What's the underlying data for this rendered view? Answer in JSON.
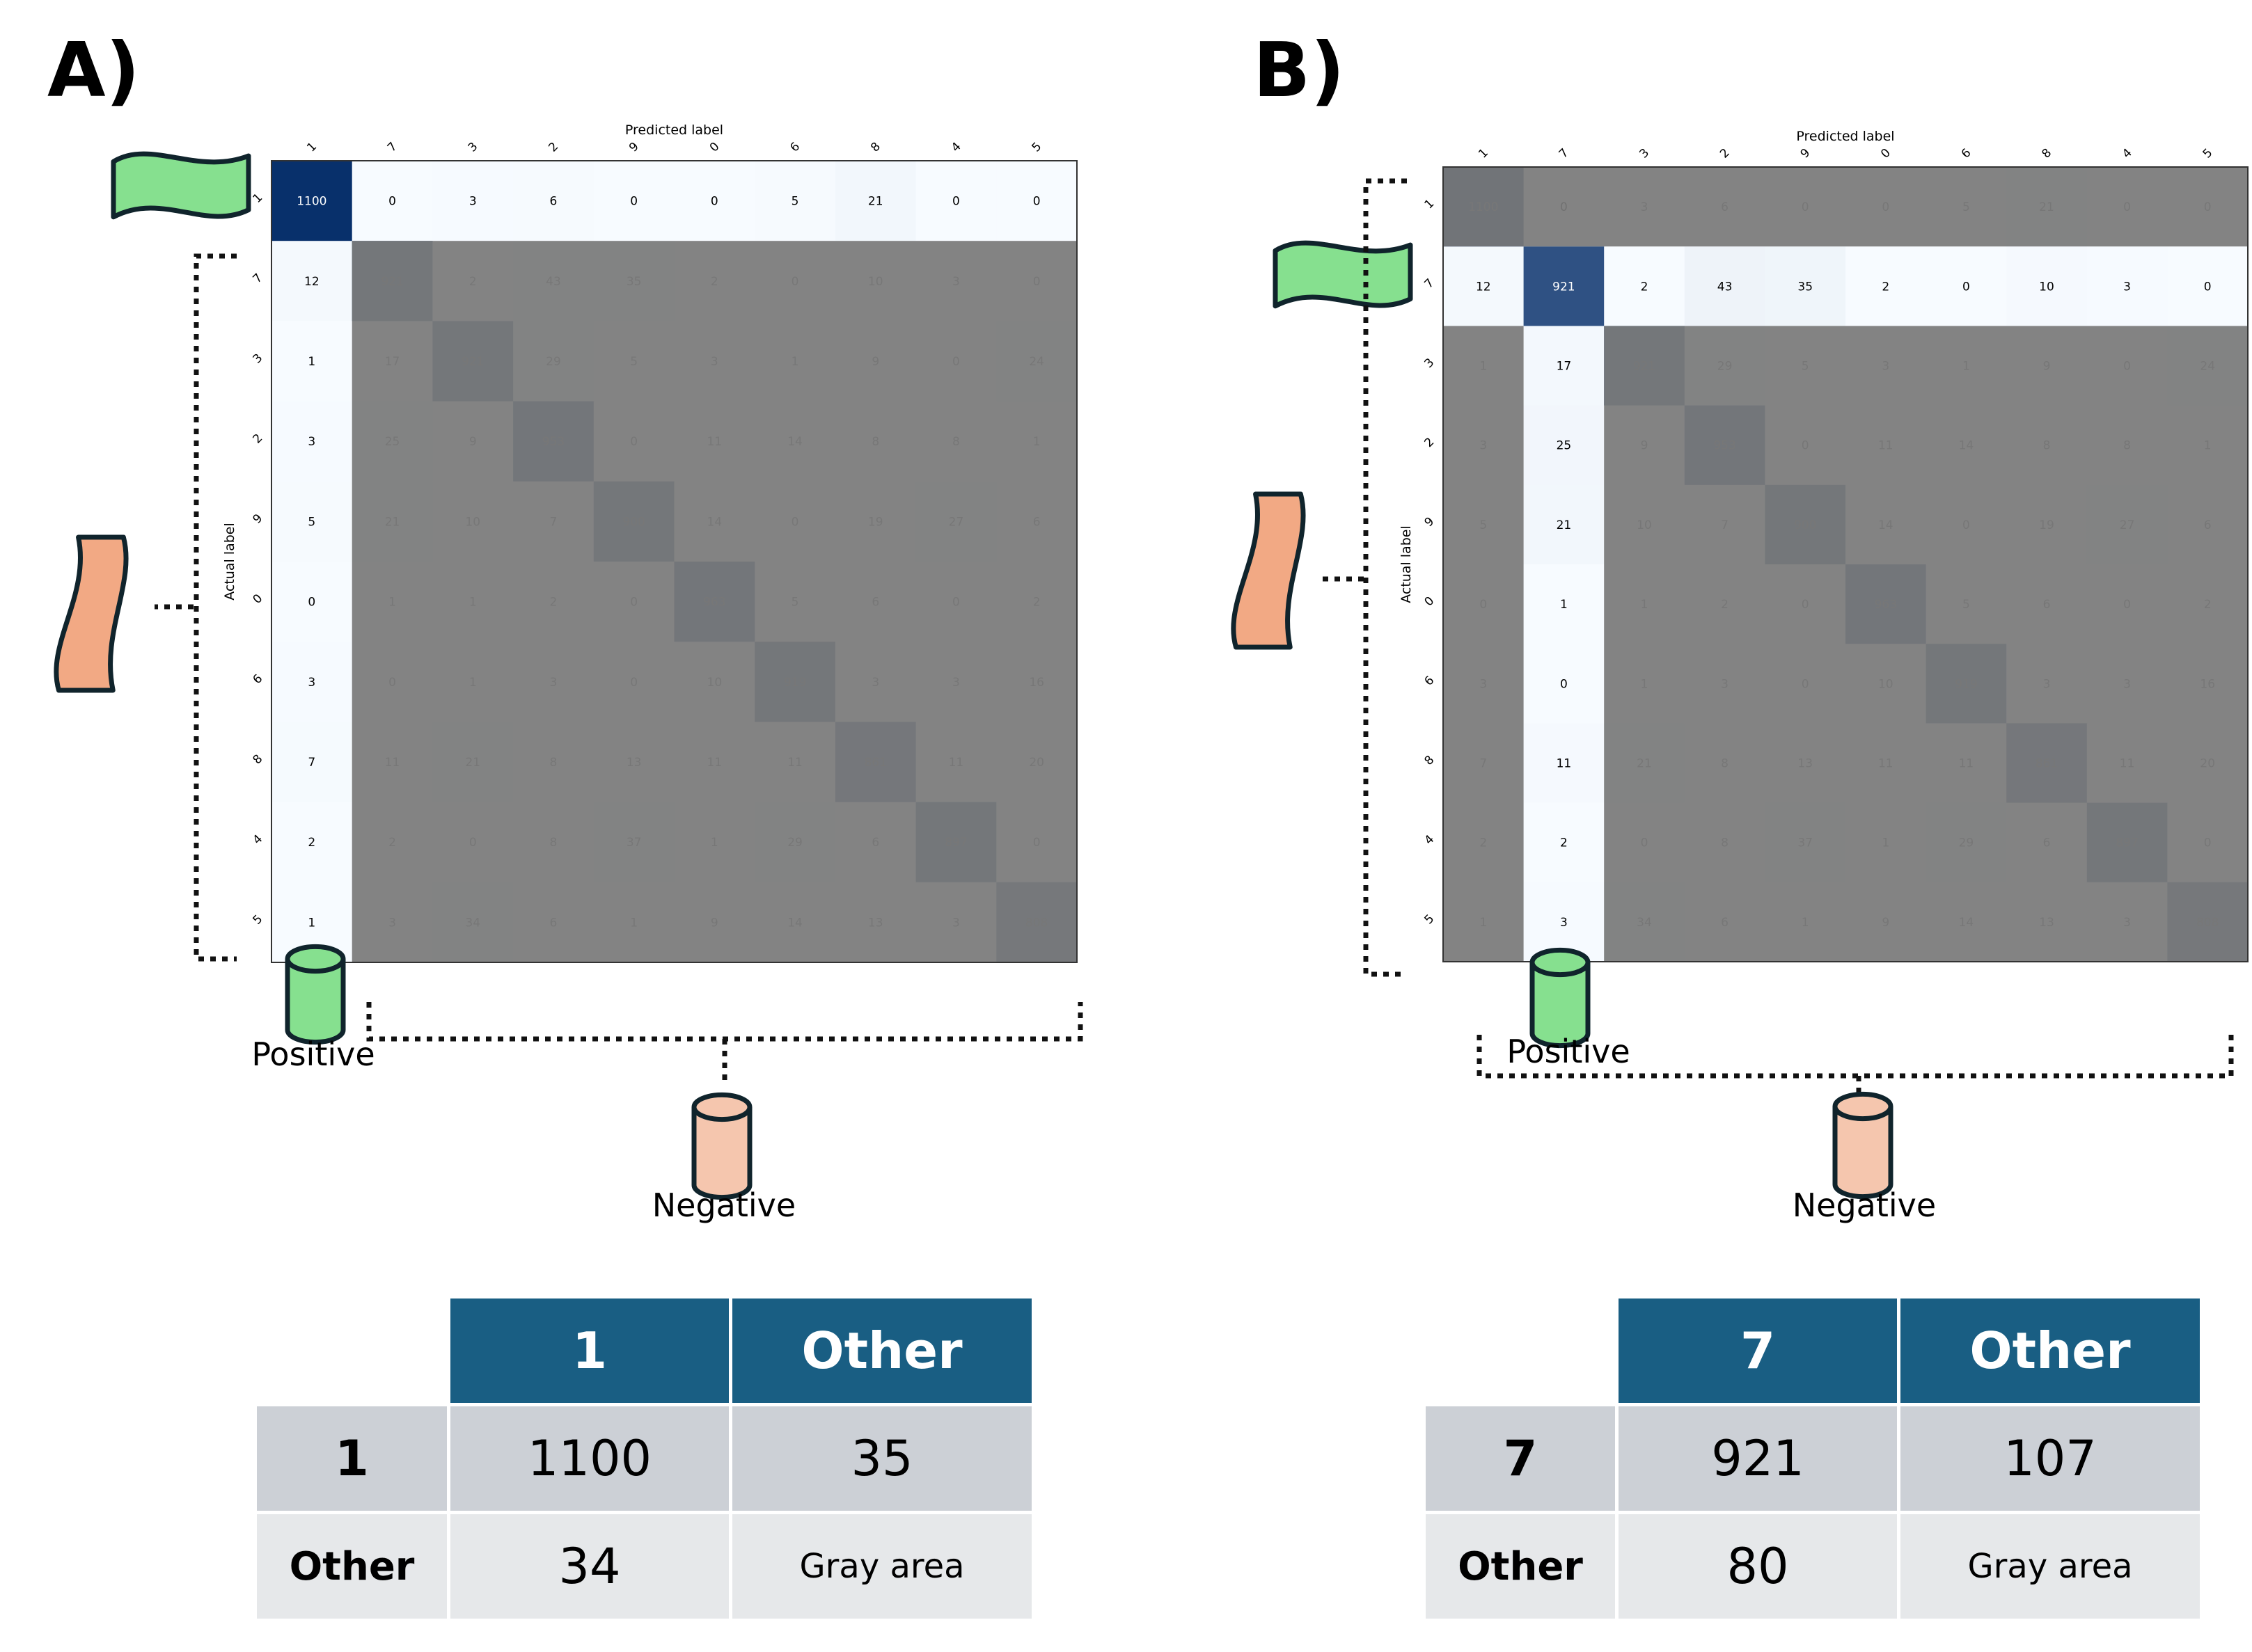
{
  "panels": [
    {
      "id": "a",
      "label": "A)",
      "matrix": {
        "x_title": "Predicted label",
        "y_title": "Actual label",
        "labels": [
          "1",
          "7",
          "3",
          "2",
          "9",
          "0",
          "6",
          "8",
          "4",
          "5"
        ],
        "values": [
          [
            1100,
            0,
            3,
            6,
            0,
            0,
            5,
            21,
            0,
            0
          ],
          [
            12,
            921,
            2,
            43,
            35,
            2,
            0,
            10,
            3,
            0
          ],
          [
            1,
            17,
            921,
            29,
            5,
            3,
            1,
            9,
            0,
            24
          ],
          [
            3,
            25,
            9,
            953,
            0,
            11,
            14,
            8,
            8,
            1
          ],
          [
            5,
            21,
            10,
            7,
            900,
            14,
            0,
            19,
            27,
            6
          ],
          [
            0,
            1,
            1,
            2,
            0,
            963,
            5,
            6,
            0,
            2
          ],
          [
            3,
            0,
            1,
            3,
            0,
            10,
            919,
            3,
            3,
            16
          ],
          [
            7,
            11,
            21,
            8,
            13,
            11,
            11,
            861,
            11,
            20
          ],
          [
            2,
            2,
            0,
            8,
            37,
            1,
            29,
            6,
            897,
            0
          ],
          [
            1,
            3,
            34,
            6,
            1,
            9,
            14,
            13,
            3,
            808
          ]
        ],
        "highlight_index": 0
      },
      "annotations": {
        "positive": "Positive",
        "negative": "Negative"
      },
      "table": {
        "headers": [
          "1",
          "Other"
        ],
        "rows": [
          {
            "label": "1",
            "values": [
              "1100",
              "35"
            ]
          },
          {
            "label": "Other",
            "values": [
              "34",
              "Gray area"
            ]
          }
        ]
      }
    },
    {
      "id": "b",
      "label": "B)",
      "matrix": {
        "x_title": "Predicted label",
        "y_title": "Actual label",
        "labels": [
          "1",
          "7",
          "3",
          "2",
          "9",
          "0",
          "6",
          "8",
          "4",
          "5"
        ],
        "values": [
          [
            1100,
            0,
            3,
            6,
            0,
            0,
            5,
            21,
            0,
            0
          ],
          [
            12,
            921,
            2,
            43,
            35,
            2,
            0,
            10,
            3,
            0
          ],
          [
            1,
            17,
            921,
            29,
            5,
            3,
            1,
            9,
            0,
            24
          ],
          [
            3,
            25,
            9,
            953,
            0,
            11,
            14,
            8,
            8,
            1
          ],
          [
            5,
            21,
            10,
            7,
            900,
            14,
            0,
            19,
            27,
            6
          ],
          [
            0,
            1,
            1,
            2,
            0,
            963,
            5,
            6,
            0,
            2
          ],
          [
            3,
            0,
            1,
            3,
            0,
            10,
            919,
            3,
            3,
            16
          ],
          [
            7,
            11,
            21,
            8,
            13,
            11,
            11,
            861,
            11,
            20
          ],
          [
            2,
            2,
            0,
            8,
            37,
            1,
            29,
            6,
            897,
            0
          ],
          [
            1,
            3,
            34,
            6,
            1,
            9,
            14,
            13,
            3,
            808
          ]
        ],
        "highlight_index": 1
      },
      "annotations": {
        "positive": "Positive",
        "negative": "Negative"
      },
      "table": {
        "headers": [
          "7",
          "Other"
        ],
        "rows": [
          {
            "label": "7",
            "values": [
              "921",
              "107"
            ]
          },
          {
            "label": "Other",
            "values": [
              "80",
              "Gray area"
            ]
          }
        ]
      }
    }
  ],
  "colors": {
    "table_header": "#195e83",
    "table_row_1": "#ccd0d6",
    "table_row_2": "#e6e8ea",
    "positive_shape": "#86e08f",
    "negative_shape": "#f2a984",
    "negative_cylinder": "#f5c6ae",
    "gray_overlay": "#7a7a7a"
  }
}
